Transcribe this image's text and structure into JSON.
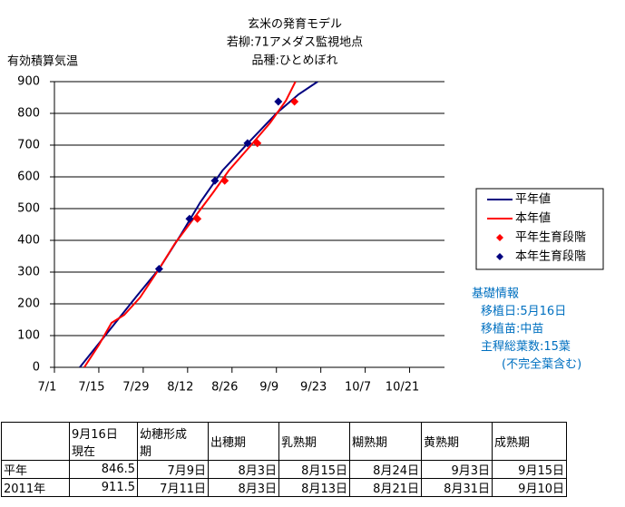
{
  "chart_data": {
    "type": "line",
    "title": [
      "玄米の発育モデル",
      "若柳:71アメダス監視地点",
      "品種:ひとめぼれ"
    ],
    "y_label": "有効積算気温",
    "xlim": [
      0,
      123
    ],
    "xticks": [
      {
        "value": 0,
        "label": "7/1"
      },
      {
        "value": 14,
        "label": "7/15"
      },
      {
        "value": 28,
        "label": "7/29"
      },
      {
        "value": 42,
        "label": "8/12"
      },
      {
        "value": 56,
        "label": "8/26"
      },
      {
        "value": 70,
        "label": "9/9"
      },
      {
        "value": 84,
        "label": "9/23"
      },
      {
        "value": 98,
        "label": "10/7"
      },
      {
        "value": 112,
        "label": "10/21"
      }
    ],
    "ylim": [
      0,
      900
    ],
    "yticks": [
      0,
      100,
      200,
      300,
      400,
      500,
      600,
      700,
      800,
      900
    ],
    "grid": true,
    "series": [
      {
        "name": "平年値",
        "color": "#000080",
        "style": "line",
        "x": [
          8,
          14,
          20,
          26,
          33,
          40,
          46,
          53,
          61,
          70,
          77,
          83
        ],
        "values": [
          0,
          75,
          150,
          225,
          310,
          420,
          520,
          620,
          706,
          800,
          860,
          900
        ]
      },
      {
        "name": "本年値",
        "color": "#ff0000",
        "style": "line",
        "x": [
          9.4,
          14,
          18,
          22,
          27,
          33,
          38,
          44,
          50,
          55,
          62,
          68,
          73,
          76
        ],
        "values": [
          0,
          70,
          140,
          165,
          220,
          310,
          390,
          470,
          550,
          620,
          700,
          770,
          840,
          900
        ]
      },
      {
        "name": "平年生育段階",
        "color": "#ff0000",
        "style": "points",
        "x": [
          45.1,
          53.7,
          64,
          75.7
        ],
        "values": [
          468,
          588,
          706,
          837
        ]
      },
      {
        "name": "本年生育段階",
        "color": "#000080",
        "style": "points",
        "x": [
          33,
          42.6,
          50.6,
          60.9,
          70.6
        ],
        "values": [
          310,
          468,
          588,
          706,
          837
        ]
      }
    ]
  },
  "info": [
    "基礎情報",
    "移植日:5月16日",
    "移植苗:中苗",
    "主稈総葉数:15葉",
    "(不完全葉含む)"
  ],
  "table": {
    "header": [
      "9月16日\n現在",
      "幼穂形成\n期",
      "出穂期",
      "乳熟期",
      "糊熟期",
      "黄熟期",
      "成熟期"
    ],
    "rows": [
      [
        "平年",
        "846.5",
        "7月9日",
        "8月3日",
        "8月15日",
        "8月24日",
        "9月3日",
        "9月15日"
      ],
      [
        "2011年",
        "911.5",
        "7月11日",
        "8月3日",
        "8月13日",
        "8月21日",
        "8月31日",
        "9月10日"
      ]
    ]
  }
}
